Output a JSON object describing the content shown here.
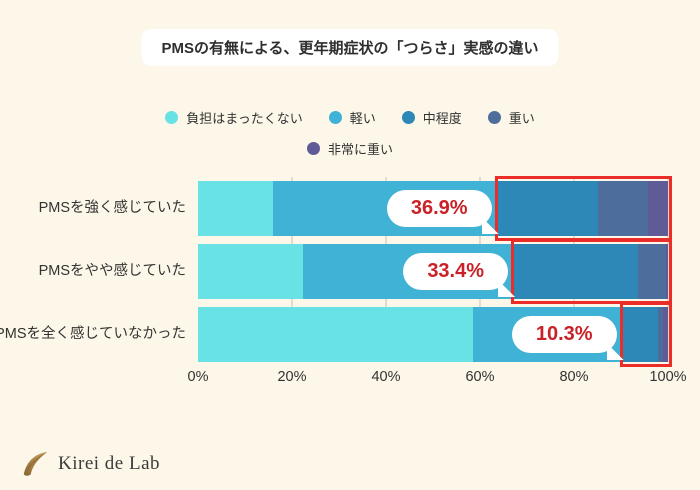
{
  "header": {
    "title": "PMSの有無による、更年期症状の「つらさ」実感の違い"
  },
  "chart_data": {
    "type": "bar",
    "orientation": "horizontal",
    "stacked": true,
    "title": "PMSの有無による、更年期症状の「つらさ」実感の違い",
    "categories": [
      "PMSを強く感じていた",
      "PMSをやや感じていた",
      "PMSを全く感じていなかった"
    ],
    "series": [
      {
        "name": "負担はまったくない",
        "color": "#68E2E4",
        "values": [
          15.9,
          22.3,
          58.5
        ]
      },
      {
        "name": "軽い",
        "color": "#40B2D5",
        "values": [
          47.2,
          44.3,
          31.2
        ]
      },
      {
        "name": "中程度",
        "color": "#2D87B7",
        "values": [
          22.0,
          27.0,
          8.1
        ]
      },
      {
        "name": "重い",
        "color": "#4D6E9D",
        "values": [
          10.6,
          5.9,
          1.1
        ]
      },
      {
        "name": "非常に重い",
        "color": "#5F5B96",
        "values": [
          4.3,
          0.5,
          1.1
        ]
      }
    ],
    "highlights": [
      {
        "label": "36.9%",
        "start_pct": 63.1
      },
      {
        "label": "33.4%",
        "start_pct": 66.6
      },
      {
        "label": "10.3%",
        "start_pct": 89.7
      }
    ],
    "x_ticks": [
      "0%",
      "20%",
      "40%",
      "60%",
      "80%",
      "100%"
    ],
    "xlim": [
      0,
      100
    ],
    "grid": true,
    "legend_position": "top"
  },
  "footer": {
    "brand": "Kirei de Lab"
  },
  "colors": {
    "background": "#FCF7E8",
    "title_bg": "#FFFFFF",
    "text_main": "#333333",
    "grid_line": "#E0DCCE",
    "highlight_border": "#EA2D29",
    "callout_text": "#C92127",
    "logo_gold_dark": "#8A6733",
    "logo_gold_light": "#C9A45E"
  }
}
